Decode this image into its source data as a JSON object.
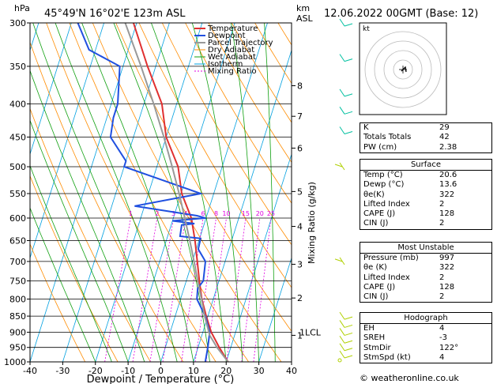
{
  "header": {
    "units_p": "hPa",
    "location": "45°49'N  16°02'E  123m  ASL",
    "units_km": "km",
    "units_asl": "ASL",
    "datetime": "12.06.2022  00GMT  (Base: 12)"
  },
  "legend": [
    "Temperature",
    "Dewpoint",
    "Parcel Trajectory",
    "Dry Adiabat",
    "Wet Adiabat",
    "Isotherm",
    "Mixing Ratio"
  ],
  "colors": {
    "temperature": "#e03030",
    "dewpoint": "#2050e0",
    "parcel": "#999999",
    "dry_adiabat": "#ff8c00",
    "wet_adiabat": "#10a010",
    "isotherm": "#00a0e0",
    "mixing_ratio": "#e000e0",
    "wind": "#b0d000",
    "wind_upper": "#00c0a0"
  },
  "chart_data": {
    "type": "line",
    "title": "45°49'N  16°02'E  123m  ASL",
    "xlabel": "Dewpoint / Temperature (°C)",
    "ylabel": "",
    "xlim": [
      -40,
      40
    ],
    "x_ticks": [
      "-40",
      "-30",
      "-20",
      "-10",
      "0",
      "10",
      "20",
      "30",
      "40"
    ],
    "p_ticks": [
      "300",
      "350",
      "400",
      "450",
      "500",
      "550",
      "600",
      "650",
      "700",
      "750",
      "800",
      "850",
      "900",
      "950",
      "1000"
    ],
    "km_ticks": [
      {
        "km": 8,
        "p": 375
      },
      {
        "km": 7,
        "p": 418
      },
      {
        "km": 6,
        "p": 468
      },
      {
        "km": 5,
        "p": 546
      },
      {
        "km": 4,
        "p": 618
      },
      {
        "km": 3,
        "p": 707
      },
      {
        "km": 2,
        "p": 797
      },
      {
        "km": 1,
        "p": 910
      }
    ],
    "lcl_label": "1LCL",
    "mixing_ratio_label": "Mixing Ratio (g/kg)",
    "mixing_ratio_values": [
      "1",
      "2",
      "3",
      "4",
      "6",
      "8",
      "10",
      "15",
      "20",
      "25"
    ],
    "series": [
      {
        "name": "Temperature",
        "points": [
          [
            1000,
            20.6
          ],
          [
            950,
            16.5
          ],
          [
            900,
            12.6
          ],
          [
            850,
            9.5
          ],
          [
            800,
            6.5
          ],
          [
            750,
            4.0
          ],
          [
            700,
            1.5
          ],
          [
            650,
            -1.2
          ],
          [
            600,
            -4.5
          ],
          [
            550,
            -9.8
          ],
          [
            500,
            -13.5
          ],
          [
            450,
            -20.0
          ],
          [
            400,
            -24.5
          ],
          [
            350,
            -32.5
          ],
          [
            300,
            -41.0
          ]
        ]
      },
      {
        "name": "Dewpoint",
        "points": [
          [
            1000,
            13.6
          ],
          [
            950,
            13.0
          ],
          [
            900,
            12.1
          ],
          [
            850,
            9.2
          ],
          [
            800,
            5.0
          ],
          [
            770,
            4.2
          ],
          [
            750,
            5.2
          ],
          [
            700,
            4.0
          ],
          [
            670,
            0.6
          ],
          [
            645,
            0.3
          ],
          [
            640,
            -6.2
          ],
          [
            615,
            -6.8
          ],
          [
            612,
            -3.0
          ],
          [
            606,
            -10.0
          ],
          [
            600,
            -0.2
          ],
          [
            595,
            -3.0
          ],
          [
            575,
            -23.0
          ],
          [
            550,
            -4.0
          ],
          [
            540,
            -9.0
          ],
          [
            500,
            -30.0
          ],
          [
            490,
            -30.0
          ],
          [
            450,
            -37.0
          ],
          [
            420,
            -38.0
          ],
          [
            400,
            -38.0
          ],
          [
            350,
            -41.0
          ],
          [
            330,
            -52.0
          ],
          [
            300,
            -58.0
          ]
        ]
      },
      {
        "name": "Parcel Trajectory",
        "points": [
          [
            1000,
            20.6
          ],
          [
            950,
            15.8
          ],
          [
            910,
            12.4
          ],
          [
            850,
            9.0
          ],
          [
            800,
            6.4
          ],
          [
            750,
            3.5
          ],
          [
            700,
            0.5
          ],
          [
            650,
            -2.8
          ],
          [
            600,
            -6.5
          ],
          [
            550,
            -10.6
          ],
          [
            500,
            -15.3
          ],
          [
            450,
            -20.7
          ],
          [
            400,
            -27.0
          ],
          [
            350,
            -34.5
          ],
          [
            300,
            -43.5
          ]
        ]
      }
    ]
  },
  "wind": {
    "hodograph_label": "kt",
    "barbs": [
      {
        "p": 1000,
        "kind": "calm"
      },
      {
        "p": 975,
        "kind": "f"
      },
      {
        "p": 950,
        "kind": "f"
      },
      {
        "p": 925,
        "kind": "f"
      },
      {
        "p": 900,
        "kind": "f"
      },
      {
        "p": 875,
        "kind": "f"
      },
      {
        "p": 850,
        "kind": "f"
      },
      {
        "p": 700,
        "kind": "hf"
      },
      {
        "p": 500,
        "kind": "hf"
      },
      {
        "p": 440,
        "kind": "f"
      },
      {
        "p": 410,
        "kind": "f"
      },
      {
        "p": 385,
        "kind": "f"
      },
      {
        "p": 340,
        "kind": "f"
      },
      {
        "p": 300,
        "kind": "f"
      }
    ]
  },
  "indices": {
    "general": [
      {
        "label": "K",
        "value": "29"
      },
      {
        "label": "Totals Totals",
        "value": "42"
      },
      {
        "label": "PW (cm)",
        "value": "2.38"
      }
    ],
    "surface": {
      "title": "Surface",
      "rows": [
        {
          "label": "Temp (°C)",
          "value": "20.6"
        },
        {
          "label": "Dewp (°C)",
          "value": "13.6"
        },
        {
          "label": "θe(K)",
          "value": "322"
        },
        {
          "label": "Lifted Index",
          "value": "2"
        },
        {
          "label": "CAPE (J)",
          "value": "128"
        },
        {
          "label": "CIN (J)",
          "value": "2"
        }
      ]
    },
    "unstable": {
      "title": "Most Unstable",
      "rows": [
        {
          "label": "Pressure (mb)",
          "value": "997"
        },
        {
          "label": "θe (K)",
          "value": "322"
        },
        {
          "label": "Lifted Index",
          "value": "2"
        },
        {
          "label": "CAPE (J)",
          "value": "128"
        },
        {
          "label": "CIN (J)",
          "value": "2"
        }
      ]
    },
    "hodograph": {
      "title": "Hodograph",
      "rows": [
        {
          "label": "EH",
          "value": "4"
        },
        {
          "label": "SREH",
          "value": "-3"
        },
        {
          "label": "StmDir",
          "value": "122°"
        },
        {
          "label": "StmSpd (kt)",
          "value": "4"
        }
      ]
    }
  },
  "footer": "© weatheronline.co.uk"
}
